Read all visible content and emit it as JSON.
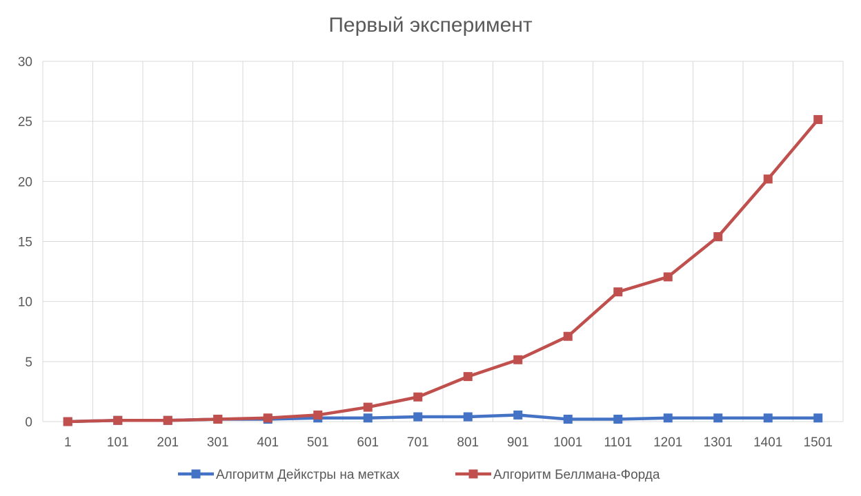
{
  "chart_data": {
    "type": "line",
    "title": "Первый эксперимент",
    "xlabel": "",
    "ylabel": "",
    "categories": [
      "1",
      "101",
      "201",
      "301",
      "401",
      "501",
      "601",
      "701",
      "801",
      "901",
      "1001",
      "1101",
      "1201",
      "1301",
      "1401",
      "1501"
    ],
    "ylim": [
      0,
      30
    ],
    "yticks": [
      "0",
      "5",
      "10",
      "15",
      "20",
      "25",
      "30"
    ],
    "grid": true,
    "legend_position": "bottom",
    "series": [
      {
        "name": "Алгоритм Дейкстры на метках",
        "color": "#4472C4",
        "values": [
          0,
          0.1,
          0.1,
          0.2,
          0.2,
          0.3,
          0.3,
          0.4,
          0.4,
          0.55,
          0.2,
          0.2,
          0.3,
          0.3,
          0.3,
          0.3
        ]
      },
      {
        "name": "Алгоритм Беллмана-Форда",
        "color": "#C0504D",
        "values": [
          0,
          0.1,
          0.1,
          0.2,
          0.3,
          0.55,
          1.2,
          2.05,
          3.75,
          5.15,
          7.1,
          10.8,
          12.05,
          15.4,
          20.2,
          25.15
        ]
      }
    ]
  }
}
